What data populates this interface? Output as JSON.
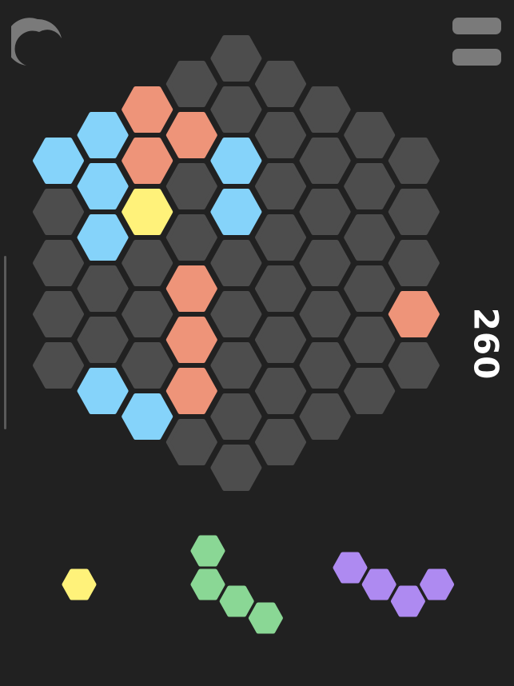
{
  "score": "260",
  "colors": {
    "background": "#212121",
    "empty": "#4d4d4d",
    "blue": "#85d3fa",
    "orange": "#ee9479",
    "yellow": "#fff27a",
    "green": "#8ad795",
    "purple": "#ae8af1",
    "icon": "#7a7a7a"
  },
  "icons": {
    "theme": "moon-icon",
    "menu": "menu-icon"
  },
  "board": {
    "columns": [
      [
        "blue",
        "empty",
        "empty",
        "empty",
        "empty"
      ],
      [
        "blue",
        "blue",
        "blue",
        "empty",
        "empty",
        "blue"
      ],
      [
        "orange",
        "orange",
        "yellow",
        "empty",
        "empty",
        "empty",
        "blue"
      ],
      [
        "empty",
        "orange",
        "empty",
        "empty",
        "orange",
        "orange",
        "orange",
        "empty"
      ],
      [
        "empty",
        "empty",
        "blue",
        "blue",
        "empty",
        "empty",
        "empty",
        "empty",
        "empty"
      ],
      [
        "empty",
        "empty",
        "empty",
        "empty",
        "empty",
        "empty",
        "empty",
        "empty"
      ],
      [
        "empty",
        "empty",
        "empty",
        "empty",
        "empty",
        "empty",
        "empty"
      ],
      [
        "empty",
        "empty",
        "empty",
        "empty",
        "empty",
        "empty"
      ],
      [
        "empty",
        "empty",
        "empty",
        "orange",
        "empty"
      ]
    ]
  },
  "pieces": [
    {
      "color": "yellow",
      "cells": [
        [
          0,
          0
        ]
      ]
    },
    {
      "color": "green",
      "cells": [
        [
          0,
          0
        ],
        [
          0,
          2
        ],
        [
          1,
          3
        ],
        [
          2,
          4
        ]
      ]
    },
    {
      "color": "purple",
      "cells": [
        [
          0,
          0
        ],
        [
          1,
          1
        ],
        [
          2,
          2
        ],
        [
          3,
          1
        ]
      ]
    }
  ]
}
